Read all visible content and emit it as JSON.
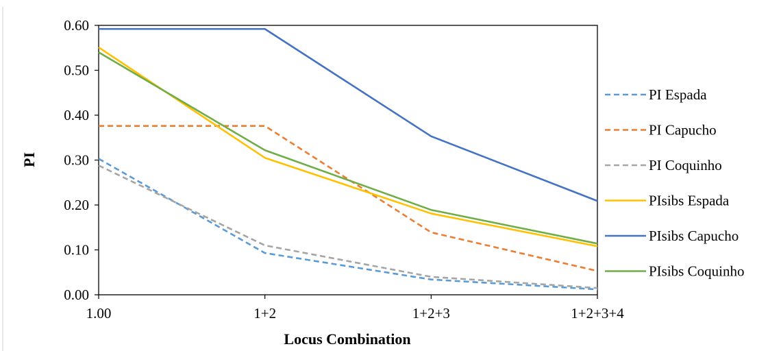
{
  "chart_data": {
    "type": "line",
    "xlabel": "Locus Combination",
    "ylabel": "PI",
    "categories": [
      "1.00",
      "1+2",
      "1+2+3",
      "1+2+3+4"
    ],
    "ylim": [
      0,
      0.6
    ],
    "yticks": [
      "0.00",
      "0.10",
      "0.20",
      "0.30",
      "0.40",
      "0.50",
      "0.60"
    ],
    "grid": false,
    "legend_position": "right",
    "series": [
      {
        "name": "PI Espada",
        "values": [
          0.303,
          0.093,
          0.034,
          0.012
        ],
        "color": "#5B9BD5",
        "dashed": true
      },
      {
        "name": "PI Capucho",
        "values": [
          0.376,
          0.376,
          0.139,
          0.053
        ],
        "color": "#ED7D31",
        "dashed": true
      },
      {
        "name": "PI Coquinho",
        "values": [
          0.288,
          0.11,
          0.04,
          0.015
        ],
        "color": "#A5A5A5",
        "dashed": true
      },
      {
        "name": "PIsibs Espada",
        "values": [
          0.551,
          0.305,
          0.181,
          0.108
        ],
        "color": "#FFC000",
        "dashed": false
      },
      {
        "name": "PIsibs Capucho",
        "values": [
          0.592,
          0.592,
          0.353,
          0.209
        ],
        "color": "#4472C4",
        "dashed": false
      },
      {
        "name": "PIsibs Coquinho",
        "values": [
          0.54,
          0.322,
          0.189,
          0.114
        ],
        "color": "#70AD47",
        "dashed": false
      }
    ]
  }
}
